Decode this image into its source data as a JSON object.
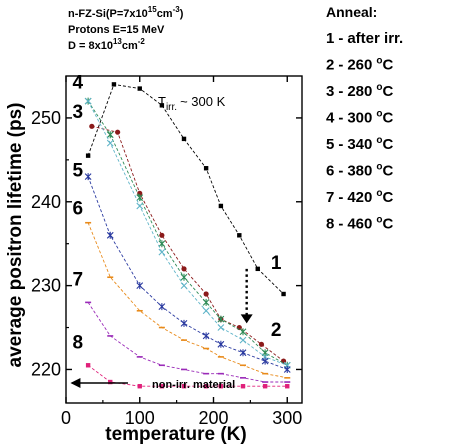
{
  "chart_data": {
    "type": "line",
    "xlabel": "temperature (K)",
    "ylabel": "average positron lifetime (ps)",
    "xlim": [
      0,
      320
    ],
    "ylim": [
      216,
      255
    ],
    "xticks": [
      0,
      100,
      200,
      300
    ],
    "xtick_labels": [
      "0",
      "100",
      "200",
      "300"
    ],
    "yticks": [
      220,
      230,
      240,
      250
    ],
    "ytick_labels": [
      "220",
      "230",
      "240",
      "250"
    ],
    "grid": false,
    "sample_lines": [
      {
        "text": "n-FZ-Si(P=7x10",
        "sup": "15",
        "tail": "cm",
        "sup2": "-3",
        "tail2": ")"
      },
      {
        "text": "Protons E=15 MeV",
        "sup": "",
        "tail": "",
        "sup2": "",
        "tail2": ""
      },
      {
        "text": "D = 8x10",
        "sup": "13",
        "tail": "cm",
        "sup2": "-2",
        "tail2": ""
      }
    ],
    "legend_title": "Anneal:",
    "legend_entries": [
      {
        "num": "1",
        "label": "after irr.",
        "unit": ""
      },
      {
        "num": "2",
        "label": "260",
        "unit": "C"
      },
      {
        "num": "3",
        "label": "280",
        "unit": "C"
      },
      {
        "num": "4",
        "label": "300",
        "unit": "C"
      },
      {
        "num": "5",
        "label": "340",
        "unit": "C"
      },
      {
        "num": "6",
        "label": "380",
        "unit": "C"
      },
      {
        "num": "7",
        "label": "420",
        "unit": "C"
      },
      {
        "num": "8",
        "label": "460",
        "unit": "C"
      }
    ],
    "legend_dash": "-",
    "legend_degree": "o",
    "tirr_label": "T",
    "tirr_sub": "irr.",
    "tirr_value": "~ 300 K",
    "nonirr_label": "non-irr. material",
    "nonirr_value": 218,
    "series": [
      {
        "id": "1",
        "color": "#000000",
        "marker": "square",
        "x": [
          30,
          65,
          100,
          130,
          160,
          190,
          210,
          235,
          260,
          295
        ],
        "y": [
          245.5,
          254,
          253.5,
          251.5,
          247.5,
          244,
          239.5,
          236,
          232,
          229
        ]
      },
      {
        "id": "2",
        "color": "#8b1a1a",
        "marker": "circle",
        "x": [
          35,
          70,
          100,
          130,
          160,
          190,
          210,
          235,
          265,
          295
        ],
        "y": [
          249,
          248.3,
          241,
          236,
          232,
          229,
          226,
          225,
          223,
          221
        ]
      },
      {
        "id": "3",
        "color": "#2e8b57",
        "marker": "star",
        "x": [
          30,
          60,
          100,
          130,
          160,
          190,
          210,
          240,
          270,
          300
        ],
        "y": [
          252,
          248,
          240.5,
          235,
          231,
          228,
          226,
          224.5,
          222,
          220.5
        ]
      },
      {
        "id": "4",
        "color": "#5fb4c8",
        "marker": "cross",
        "x": [
          30,
          60,
          100,
          130,
          160,
          190,
          210,
          240,
          270,
          300
        ],
        "y": [
          252,
          247,
          239.5,
          234,
          230,
          227,
          225,
          223.5,
          221.5,
          220.5
        ]
      },
      {
        "id": "5",
        "color": "#2a3aa0",
        "marker": "star",
        "x": [
          30,
          60,
          100,
          130,
          160,
          190,
          210,
          240,
          270,
          300
        ],
        "y": [
          243,
          236,
          230,
          227.5,
          225.5,
          224,
          223,
          222,
          221,
          220
        ]
      },
      {
        "id": "6",
        "color": "#e88a1a",
        "marker": "dash",
        "x": [
          30,
          60,
          100,
          130,
          160,
          190,
          210,
          240,
          270,
          300
        ],
        "y": [
          237.5,
          231,
          227,
          225,
          223.5,
          222.5,
          221.5,
          220.5,
          219.5,
          219
        ]
      },
      {
        "id": "7",
        "color": "#9a2ab8",
        "marker": "dash",
        "x": [
          30,
          60,
          100,
          130,
          160,
          190,
          210,
          240,
          270,
          300
        ],
        "y": [
          228,
          224,
          221.5,
          220.5,
          220,
          219.5,
          219.5,
          219,
          218.5,
          218.5
        ]
      },
      {
        "id": "8",
        "color": "#e0207a",
        "marker": "square",
        "x": [
          30,
          60,
          100,
          130,
          160,
          190,
          210,
          240,
          270,
          300
        ],
        "y": [
          220.5,
          218.5,
          218,
          218,
          218,
          218,
          218,
          218,
          218,
          218
        ]
      }
    ],
    "curve_labels": [
      {
        "id": "1",
        "x": 285,
        "y": 232
      },
      {
        "id": "2",
        "x": 285,
        "y": 224
      },
      {
        "id": "3",
        "x": 16,
        "y": 250
      },
      {
        "id": "4",
        "x": 16,
        "y": 253.5
      },
      {
        "id": "5",
        "x": 16,
        "y": 243
      },
      {
        "id": "6",
        "x": 16,
        "y": 238.5
      },
      {
        "id": "7",
        "x": 16,
        "y": 230
      },
      {
        "id": "8",
        "x": 16,
        "y": 222.5
      }
    ]
  }
}
